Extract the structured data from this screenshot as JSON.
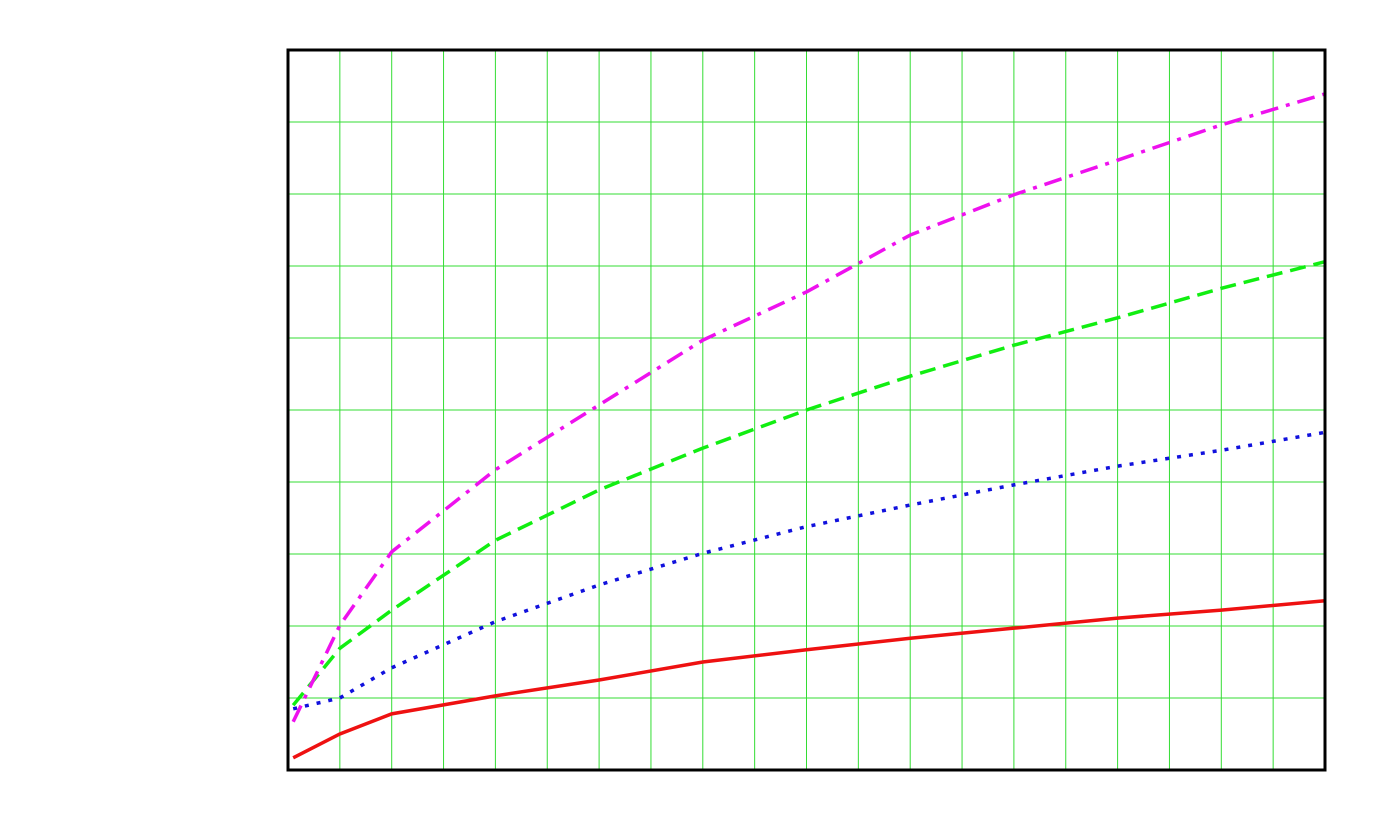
{
  "chart_data": {
    "type": "line",
    "x": [
      0.1,
      1,
      2,
      4,
      6,
      8,
      10,
      12,
      14,
      16,
      18,
      20
    ],
    "xlim": [
      0,
      20
    ],
    "ylim": [
      0,
      10
    ],
    "xticks": [
      0,
      1,
      2,
      3,
      4,
      5,
      6,
      7,
      8,
      9,
      10,
      11,
      12,
      13,
      14,
      15,
      16,
      17,
      18,
      19,
      20
    ],
    "yticks": [
      0,
      1,
      2,
      3,
      4,
      5,
      6,
      7,
      8,
      9,
      10
    ],
    "grid": true,
    "grid_color": "#33dd33",
    "series": [
      {
        "color": "#ee1111",
        "dash": "solid",
        "values": [
          0.17,
          0.5,
          0.78,
          1.03,
          1.25,
          1.5,
          1.67,
          1.83,
          1.97,
          2.11,
          2.22,
          2.35
        ]
      },
      {
        "color": "#1111dd",
        "dash": "dotted",
        "values": [
          0.85,
          1.0,
          1.42,
          2.06,
          2.57,
          3.01,
          3.38,
          3.68,
          3.96,
          4.22,
          4.44,
          4.69
        ]
      },
      {
        "color": "#11ee11",
        "dash": "dashed",
        "values": [
          0.9,
          1.69,
          2.22,
          3.19,
          3.89,
          4.47,
          5.0,
          5.47,
          5.9,
          6.28,
          6.69,
          7.06
        ]
      },
      {
        "color": "#ee11ee",
        "dash": "dashdot",
        "values": [
          0.67,
          2.01,
          3.03,
          4.17,
          5.07,
          5.97,
          6.64,
          7.43,
          7.99,
          8.47,
          8.96,
          9.39
        ]
      }
    ]
  }
}
